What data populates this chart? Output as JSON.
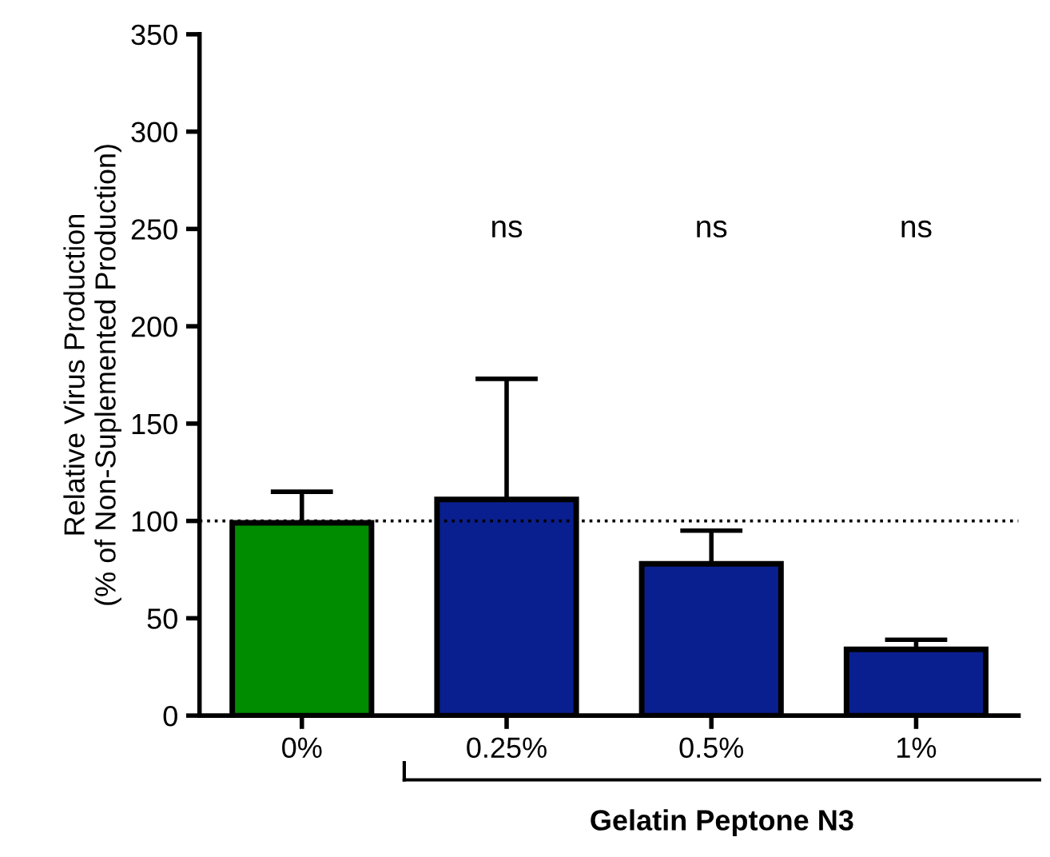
{
  "chart_data": {
    "type": "bar",
    "ylabel": "Relative Virus Production\n(% of Non-Suplemented Production)",
    "categories": [
      "0%",
      "0.25%",
      "0.5%",
      "1%"
    ],
    "values": [
      99,
      111,
      78,
      34
    ],
    "colors": [
      "#008c00",
      "#0a1f8f",
      "#0a1f8f",
      "#0a1f8f"
    ],
    "errors": [
      [
        99,
        115
      ],
      [
        111,
        173
      ],
      [
        78,
        95
      ],
      [
        34,
        39
      ]
    ],
    "ylim": [
      0,
      350
    ],
    "yticks": [
      0,
      50,
      100,
      150,
      200,
      250,
      300,
      350
    ],
    "ref_lines": [
      {
        "axis": "y",
        "value": 100,
        "line_style": "dotted",
        "color": "#000000"
      }
    ],
    "annotations": [
      "ns",
      "ns",
      "ns",
      "Gelatin Peptone N3"
    ],
    "grid": false,
    "legend": false
  }
}
